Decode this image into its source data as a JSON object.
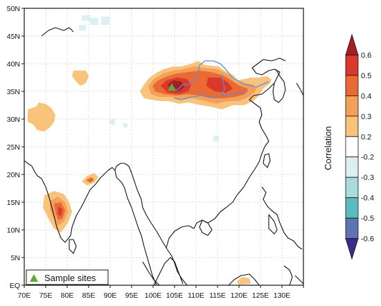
{
  "map": {
    "lon_ticks": [
      "70E",
      "75E",
      "80E",
      "85E",
      "90E",
      "95E",
      "100E",
      "105E",
      "110E",
      "115E",
      "120E",
      "125E",
      "130E"
    ],
    "lat_ticks": [
      "EQ",
      "5N",
      "10N",
      "15N",
      "20N",
      "25N",
      "30N",
      "35N",
      "40N",
      "45N",
      "50N"
    ],
    "legend_label": "Sample sites",
    "sample_site_color": "#5caa3a",
    "river_color": "#5b8fd6",
    "coast_color": "#111111"
  },
  "colorbar": {
    "title": "Correlation",
    "labels": [
      "0.6",
      "0.5",
      "0.4",
      "0.3",
      "0.2",
      "-0.2",
      "-0.3",
      "-0.4",
      "-0.5",
      "-0.6"
    ],
    "colors": [
      "#a51e24",
      "#d9382b",
      "#ea6a35",
      "#f5a05a",
      "#f8c47c",
      "#ffffff",
      "#dceff3",
      "#a8dbdb",
      "#5bbcc0",
      "#5c74b3",
      "#3f2b86"
    ]
  }
}
